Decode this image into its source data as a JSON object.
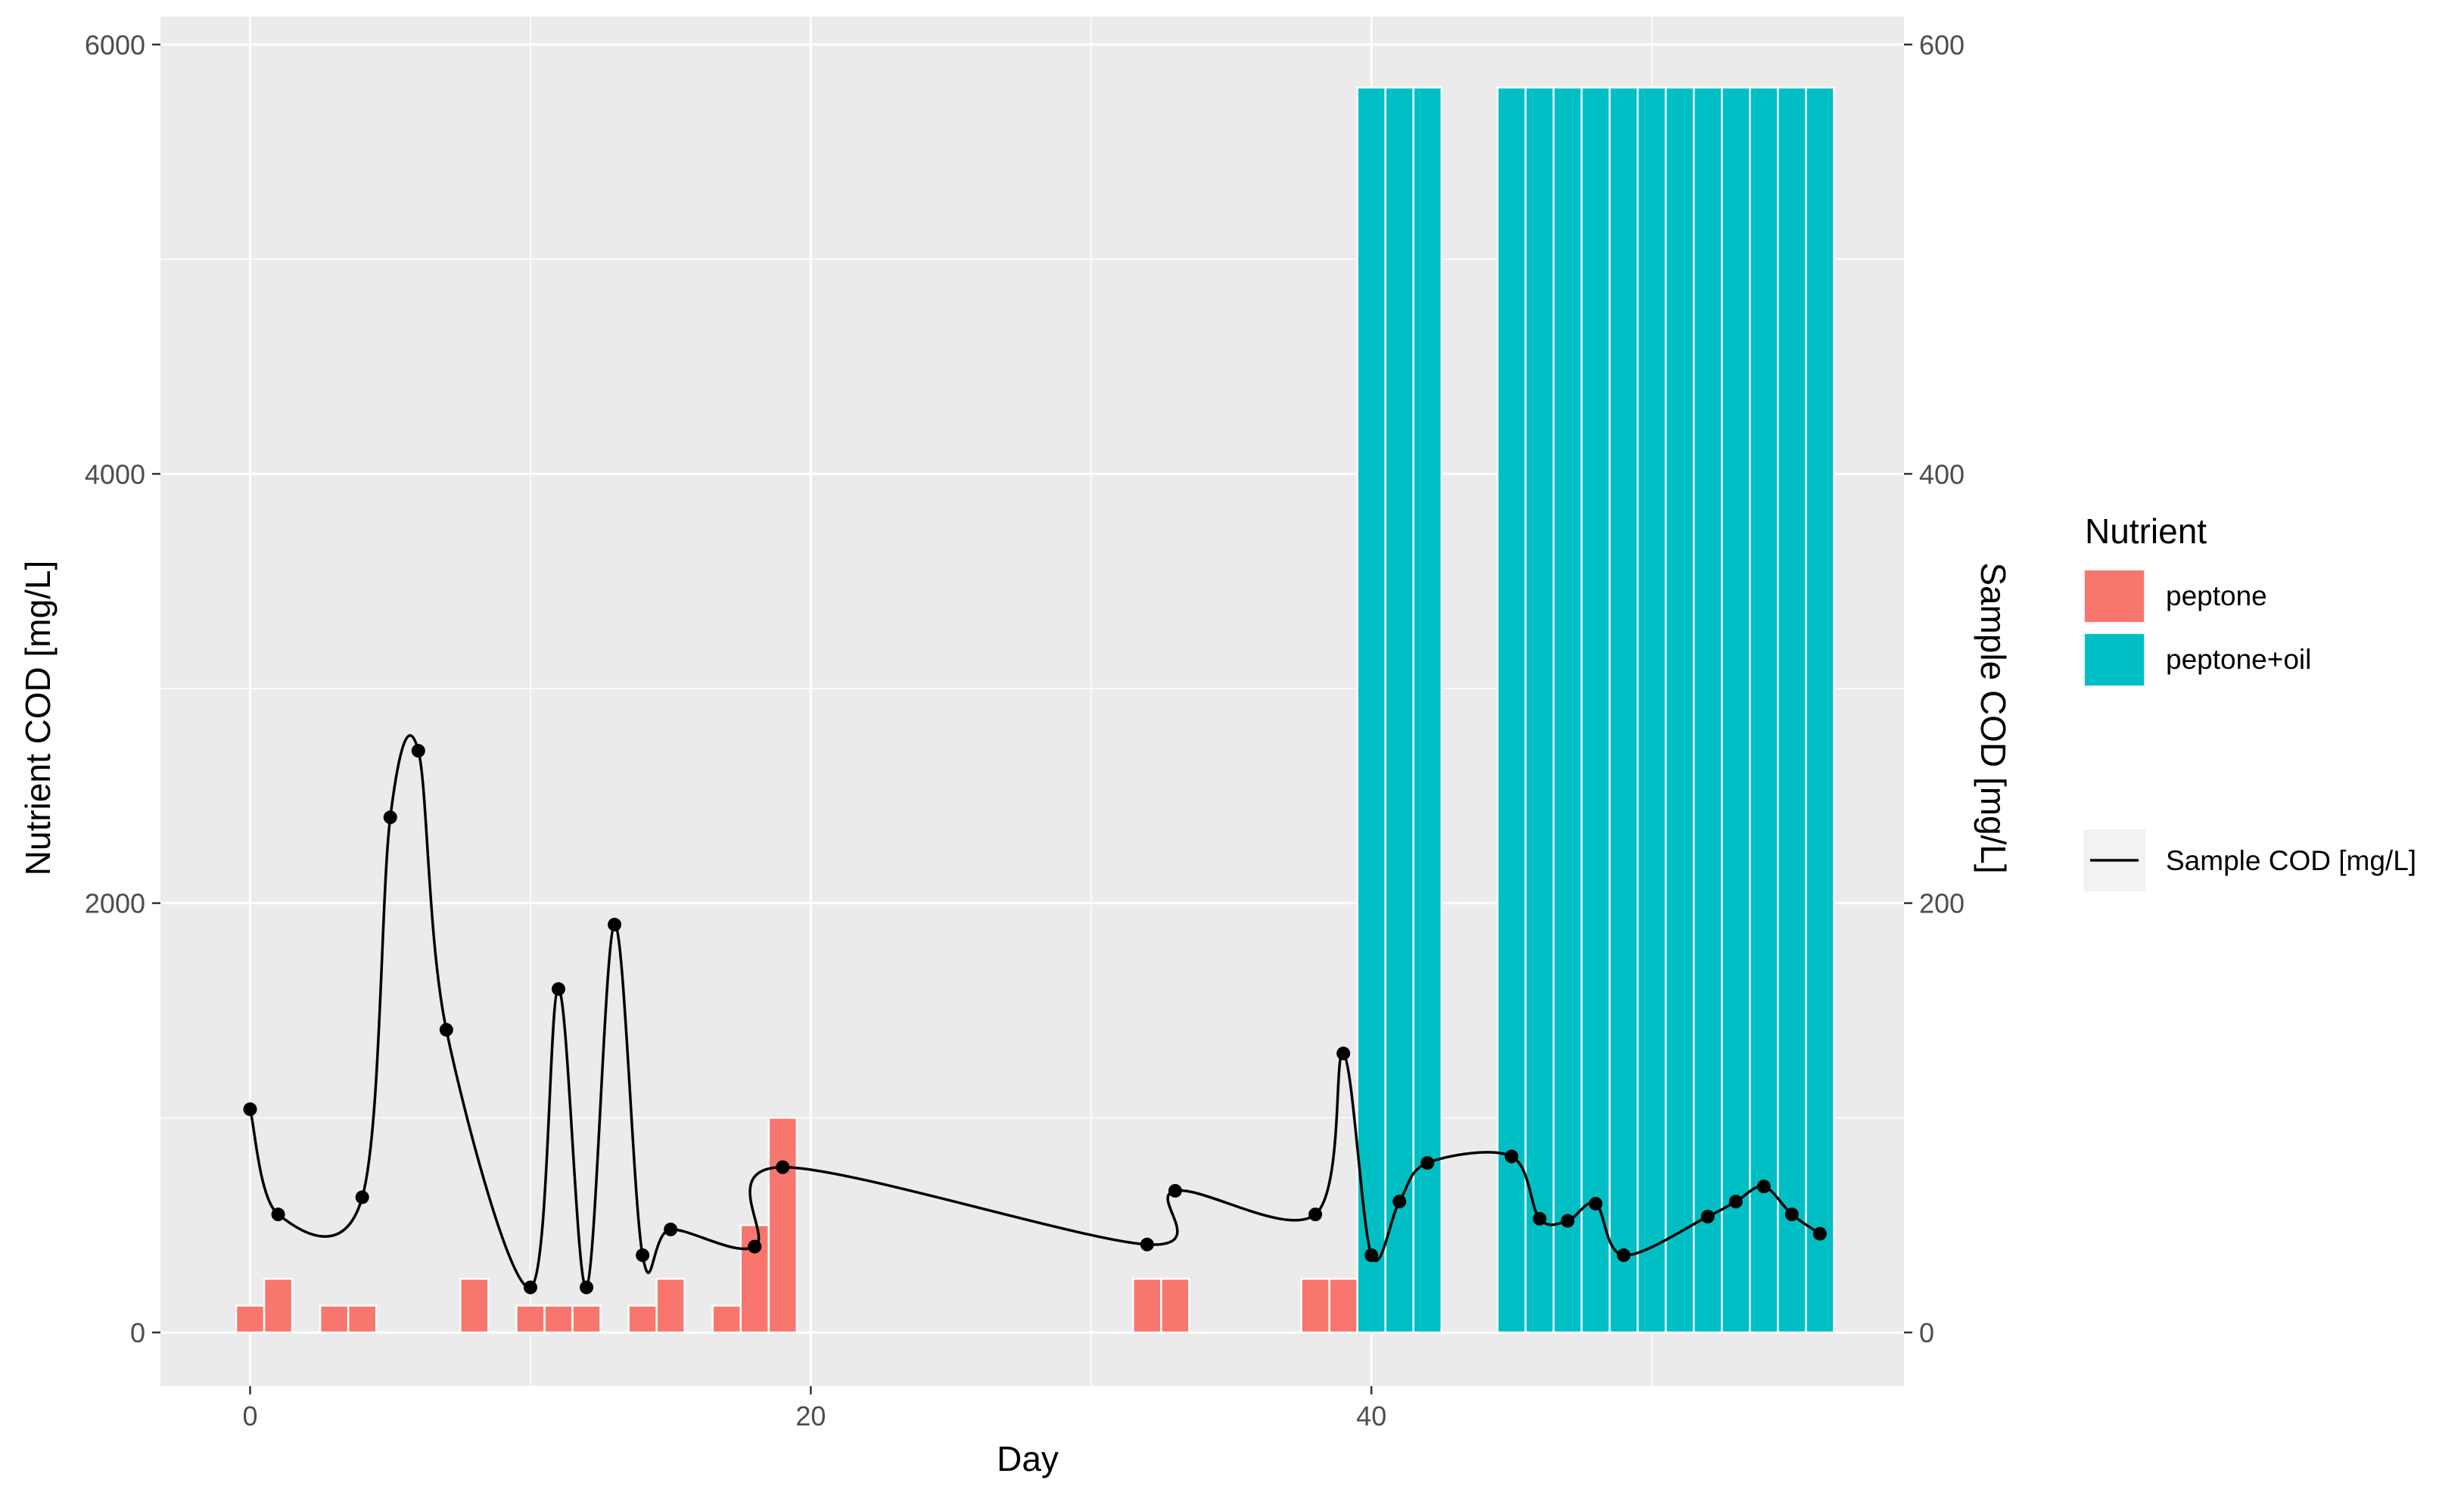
{
  "chart_data": {
    "type": "bar+line",
    "title": "",
    "xlabel": "Day",
    "ylabel_left": "Nutrient COD [mg/L]",
    "ylabel_right": "Sample COD [mg/L]",
    "xlim": [
      -3.2,
      59
    ],
    "ylim_left": [
      -250,
      6130
    ],
    "ylim_right": [
      -25,
      613
    ],
    "x_ticks": [
      0,
      20,
      40
    ],
    "x_tick_labels": [
      "0",
      "20",
      "40"
    ],
    "y_left_ticks": [
      0,
      2000,
      4000,
      6000
    ],
    "y_left_tick_labels": [
      "0",
      "2000",
      "4000",
      "6000"
    ],
    "y_right_ticks": [
      0,
      200,
      400,
      600
    ],
    "y_right_tick_labels": [
      "0",
      "200",
      "400",
      "600"
    ],
    "grid": true,
    "legend": {
      "title": "Nutrient",
      "position": "right",
      "entries": [
        {
          "label": "peptone",
          "color": "#F8766D"
        },
        {
          "label": "peptone+oil",
          "color": "#00BFC4"
        }
      ],
      "line_entry": {
        "label": "Sample COD [mg/L]",
        "color": "#000000"
      }
    },
    "bar_series": [
      {
        "name": "peptone",
        "color": "#F8766D",
        "points": [
          [
            0,
            125
          ],
          [
            1,
            250
          ],
          [
            3,
            125
          ],
          [
            4,
            125
          ],
          [
            8,
            250
          ],
          [
            10,
            125
          ],
          [
            11,
            125
          ],
          [
            12,
            125
          ],
          [
            14,
            125
          ],
          [
            15,
            250
          ],
          [
            17,
            125
          ],
          [
            18,
            500
          ],
          [
            19,
            1000
          ],
          [
            32,
            250
          ],
          [
            33,
            250
          ],
          [
            38,
            250
          ],
          [
            39,
            250
          ]
        ]
      },
      {
        "name": "peptone+oil",
        "color": "#00BFC4",
        "points": [
          [
            40,
            5800
          ],
          [
            41,
            5800
          ],
          [
            42,
            5800
          ],
          [
            45,
            5800
          ],
          [
            46,
            5800
          ],
          [
            47,
            5800
          ],
          [
            48,
            5800
          ],
          [
            49,
            5800
          ],
          [
            50,
            5800
          ],
          [
            51,
            5800
          ],
          [
            52,
            5800
          ],
          [
            53,
            5800
          ],
          [
            54,
            5800
          ],
          [
            55,
            5800
          ],
          [
            56,
            5800
          ]
        ]
      }
    ],
    "line_series": {
      "name": "Sample COD [mg/L]",
      "color": "#000000",
      "axis": "right",
      "points": [
        [
          0,
          104
        ],
        [
          1,
          55
        ],
        [
          4,
          63
        ],
        [
          5,
          240
        ],
        [
          6,
          271
        ],
        [
          7,
          141
        ],
        [
          10,
          21
        ],
        [
          11,
          160
        ],
        [
          12,
          21
        ],
        [
          13,
          190
        ],
        [
          14,
          36
        ],
        [
          15,
          48
        ],
        [
          18,
          40
        ],
        [
          19,
          77
        ],
        [
          32,
          41
        ],
        [
          33,
          66
        ],
        [
          38,
          55
        ],
        [
          39,
          130
        ],
        [
          40,
          36
        ],
        [
          41,
          61
        ],
        [
          42,
          79
        ],
        [
          45,
          82
        ],
        [
          46,
          53
        ],
        [
          47,
          52
        ],
        [
          48,
          60
        ],
        [
          49,
          36
        ],
        [
          52,
          54
        ],
        [
          53,
          61
        ],
        [
          54,
          68
        ],
        [
          55,
          55
        ],
        [
          56,
          46
        ]
      ]
    }
  }
}
